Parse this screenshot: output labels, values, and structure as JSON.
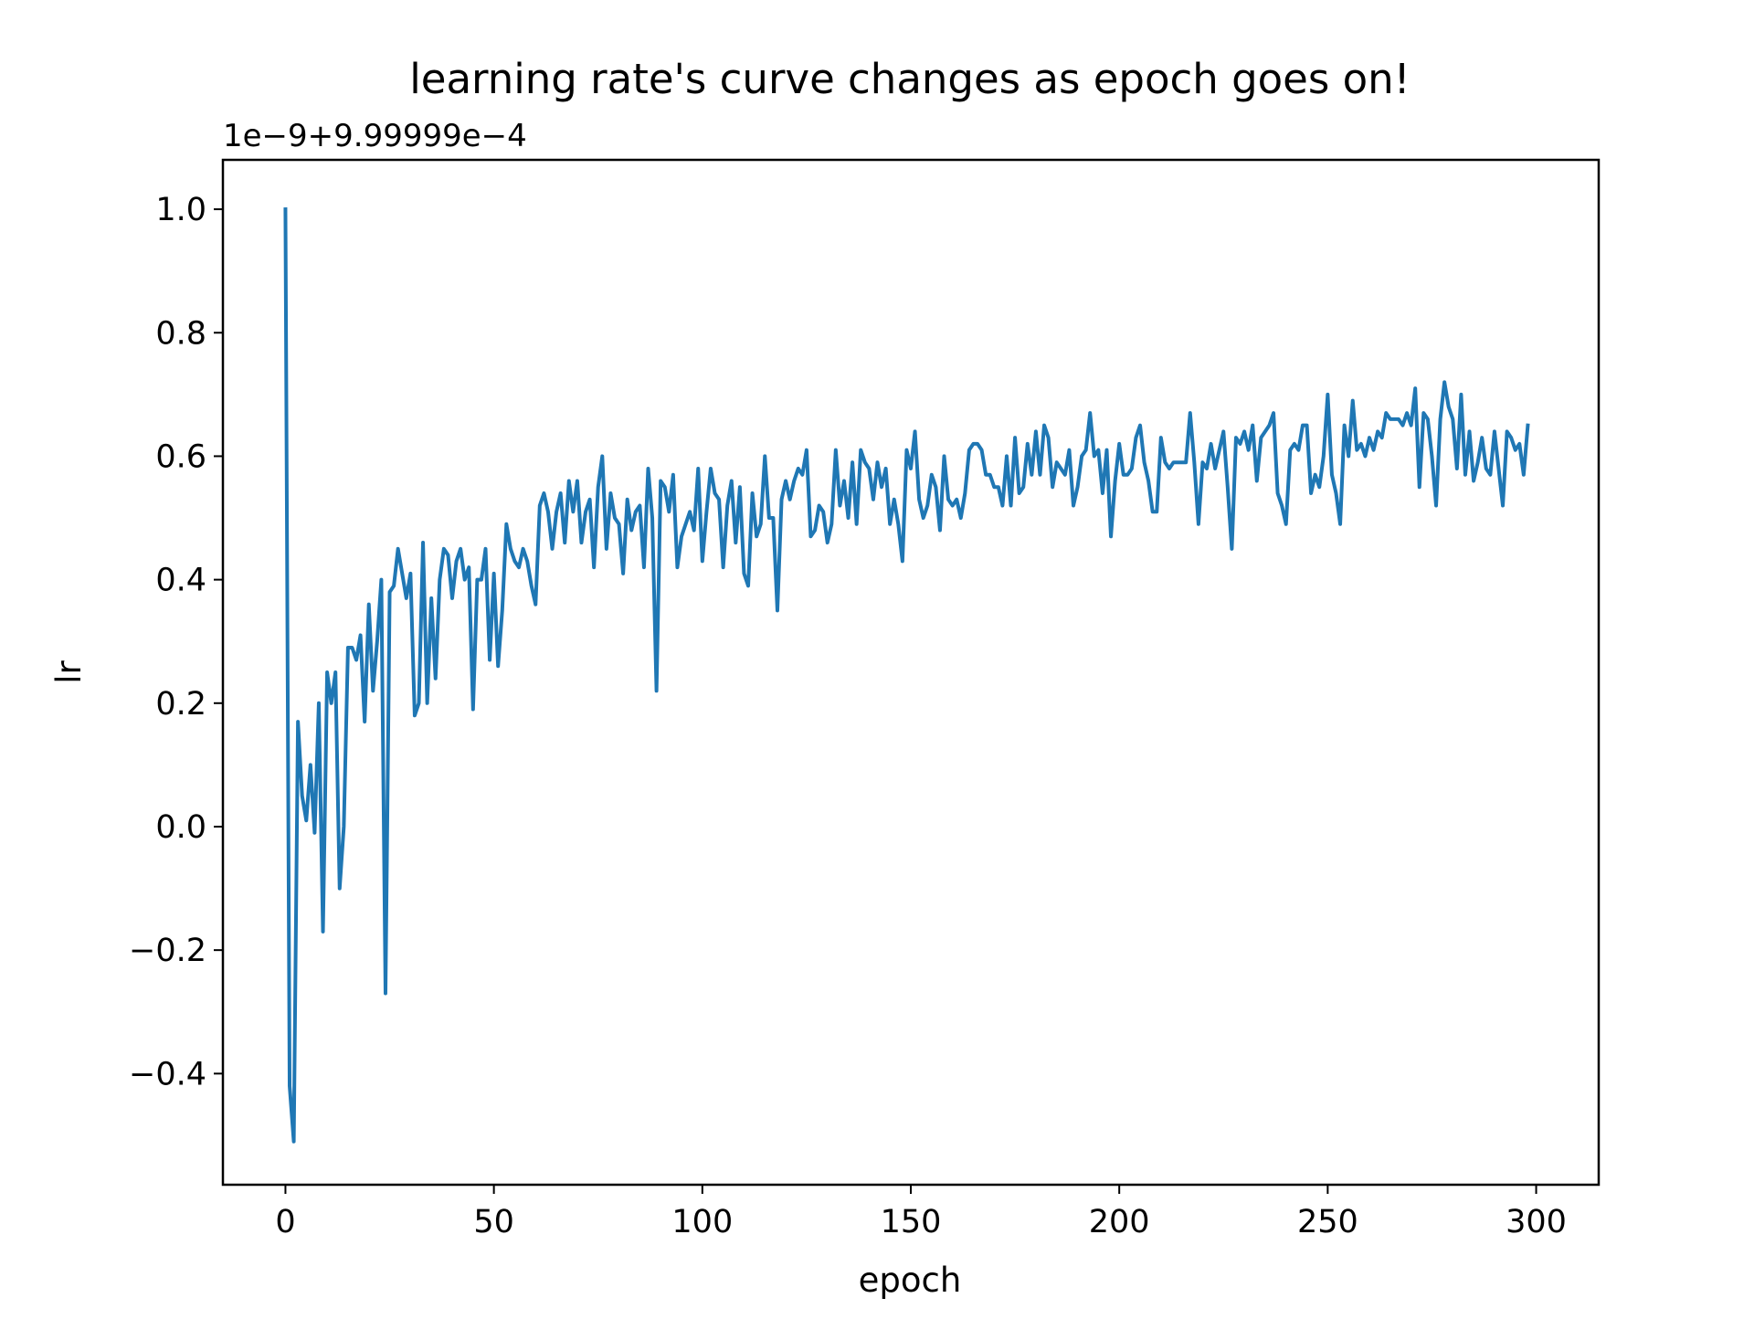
{
  "chart_data": {
    "type": "line",
    "title": "learning rate's curve changes as epoch goes on!",
    "xlabel": "epoch",
    "ylabel": "lr",
    "offset_text": "1e−9+9.99999e−4",
    "xlim": [
      -15,
      315
    ],
    "ylim": [
      -0.58,
      1.08
    ],
    "grid": false,
    "line_color": "#1f77b4",
    "x_ticks": [
      {
        "value": 0,
        "label": "0"
      },
      {
        "value": 50,
        "label": "50"
      },
      {
        "value": 100,
        "label": "100"
      },
      {
        "value": 150,
        "label": "150"
      },
      {
        "value": 200,
        "label": "200"
      },
      {
        "value": 250,
        "label": "250"
      },
      {
        "value": 300,
        "label": "300"
      }
    ],
    "y_ticks": [
      {
        "value": -0.4,
        "label": "−0.4"
      },
      {
        "value": -0.2,
        "label": "−0.2"
      },
      {
        "value": 0.0,
        "label": "0.0"
      },
      {
        "value": 0.2,
        "label": "0.2"
      },
      {
        "value": 0.4,
        "label": "0.4"
      },
      {
        "value": 0.6,
        "label": "0.6"
      },
      {
        "value": 0.8,
        "label": "0.8"
      },
      {
        "value": 1.0,
        "label": "1.0"
      }
    ],
    "series": [
      {
        "x_start": 0,
        "x_step": 1,
        "values": [
          1.0,
          -0.42,
          -0.51,
          0.17,
          0.05,
          0.01,
          0.1,
          -0.01,
          0.2,
          -0.17,
          0.25,
          0.2,
          0.25,
          -0.1,
          0.0,
          0.29,
          0.29,
          0.27,
          0.31,
          0.17,
          0.36,
          0.22,
          0.3,
          0.4,
          -0.27,
          0.38,
          0.39,
          0.45,
          0.41,
          0.37,
          0.41,
          0.18,
          0.2,
          0.46,
          0.2,
          0.37,
          0.24,
          0.4,
          0.45,
          0.44,
          0.37,
          0.43,
          0.45,
          0.4,
          0.42,
          0.19,
          0.4,
          0.4,
          0.45,
          0.27,
          0.41,
          0.26,
          0.35,
          0.49,
          0.45,
          0.43,
          0.42,
          0.45,
          0.43,
          0.39,
          0.36,
          0.52,
          0.54,
          0.51,
          0.45,
          0.51,
          0.54,
          0.46,
          0.56,
          0.51,
          0.56,
          0.46,
          0.51,
          0.53,
          0.42,
          0.55,
          0.6,
          0.45,
          0.54,
          0.5,
          0.49,
          0.41,
          0.53,
          0.48,
          0.51,
          0.52,
          0.42,
          0.58,
          0.5,
          0.22,
          0.56,
          0.55,
          0.51,
          0.57,
          0.42,
          0.47,
          0.49,
          0.51,
          0.48,
          0.58,
          0.43,
          0.51,
          0.58,
          0.54,
          0.53,
          0.42,
          0.52,
          0.56,
          0.46,
          0.55,
          0.41,
          0.39,
          0.54,
          0.47,
          0.49,
          0.6,
          0.5,
          0.5,
          0.35,
          0.53,
          0.56,
          0.53,
          0.56,
          0.58,
          0.57,
          0.61,
          0.47,
          0.48,
          0.52,
          0.51,
          0.46,
          0.49,
          0.61,
          0.52,
          0.56,
          0.5,
          0.59,
          0.49,
          0.61,
          0.59,
          0.58,
          0.53,
          0.59,
          0.55,
          0.58,
          0.49,
          0.53,
          0.49,
          0.43,
          0.61,
          0.58,
          0.64,
          0.53,
          0.5,
          0.52,
          0.57,
          0.55,
          0.48,
          0.6,
          0.53,
          0.52,
          0.53,
          0.5,
          0.54,
          0.61,
          0.62,
          0.62,
          0.61,
          0.57,
          0.57,
          0.55,
          0.55,
          0.52,
          0.6,
          0.52,
          0.63,
          0.54,
          0.55,
          0.62,
          0.57,
          0.64,
          0.57,
          0.65,
          0.63,
          0.55,
          0.59,
          0.58,
          0.57,
          0.61,
          0.52,
          0.55,
          0.6,
          0.61,
          0.67,
          0.6,
          0.61,
          0.54,
          0.61,
          0.47,
          0.56,
          0.62,
          0.57,
          0.57,
          0.58,
          0.63,
          0.65,
          0.59,
          0.56,
          0.51,
          0.51,
          0.63,
          0.59,
          0.58,
          0.59,
          0.59,
          0.59,
          0.59,
          0.67,
          0.59,
          0.49,
          0.59,
          0.58,
          0.62,
          0.58,
          0.61,
          0.64,
          0.55,
          0.45,
          0.63,
          0.62,
          0.64,
          0.61,
          0.65,
          0.56,
          0.63,
          0.64,
          0.65,
          0.67,
          0.54,
          0.52,
          0.49,
          0.61,
          0.62,
          0.61,
          0.65,
          0.65,
          0.54,
          0.57,
          0.55,
          0.6,
          0.7,
          0.57,
          0.54,
          0.49,
          0.65,
          0.6,
          0.69,
          0.61,
          0.62,
          0.6,
          0.63,
          0.61,
          0.64,
          0.63,
          0.67,
          0.66,
          0.66,
          0.66,
          0.65,
          0.67,
          0.65,
          0.71,
          0.55,
          0.67,
          0.66,
          0.6,
          0.52,
          0.66,
          0.72,
          0.68,
          0.66,
          0.58,
          0.7,
          0.57,
          0.64,
          0.56,
          0.59,
          0.63,
          0.58,
          0.57,
          0.64,
          0.58,
          0.52,
          0.64,
          0.63,
          0.61,
          0.62,
          0.57,
          0.65
        ]
      }
    ]
  }
}
